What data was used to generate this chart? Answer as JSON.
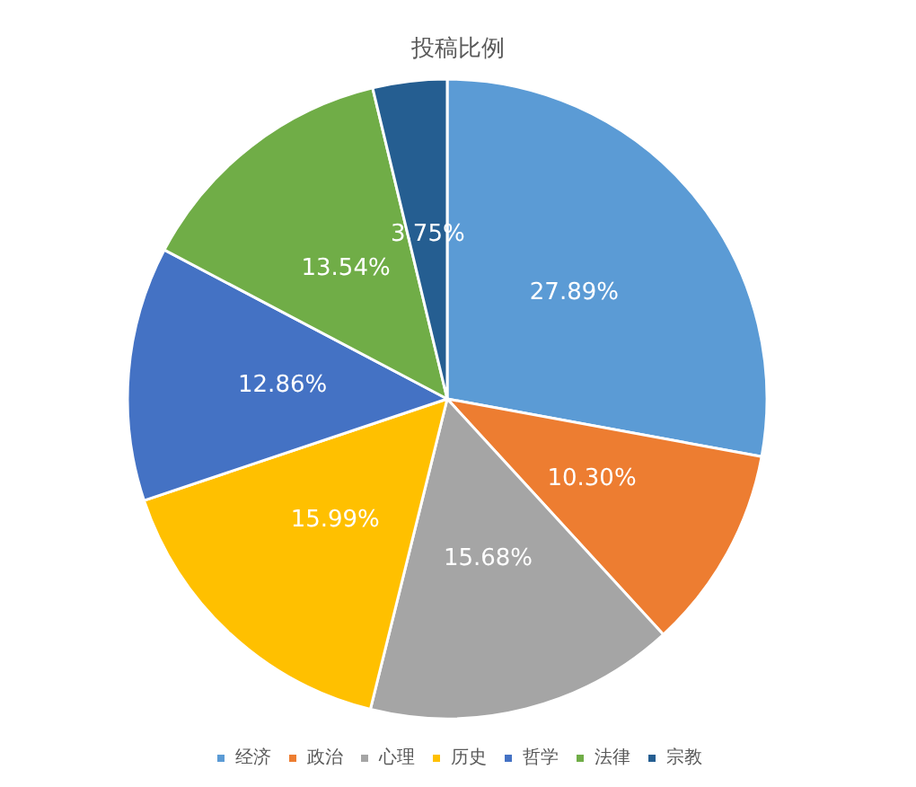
{
  "chart_data": {
    "type": "pie",
    "title": "投稿比例",
    "categories": [
      "经济",
      "政治",
      "心理",
      "历史",
      "哲学",
      "法律",
      "宗教"
    ],
    "values": [
      27.89,
      10.3,
      15.68,
      15.99,
      12.86,
      13.54,
      3.75
    ],
    "colors": [
      "#5b9bd5",
      "#ed7d31",
      "#a5a5a5",
      "#ffc000",
      "#4472c4",
      "#70ad47",
      "#255e91"
    ],
    "value_labels": [
      "27.89%",
      "10.30%",
      "15.68%",
      "15.99%",
      "12.86%",
      "13.54%",
      "3.75%"
    ],
    "legend": "bottom"
  }
}
